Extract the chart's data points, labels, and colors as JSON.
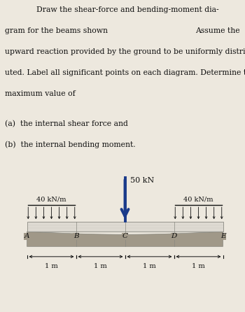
{
  "title_line1": "Draw the shear-force and bending-moment dia-",
  "title_line2_left": "gram for the beams shown",
  "title_line2_right": "Assume the",
  "title_line3": "upward reaction provided by the ground to be uniformly distrib-",
  "title_line4": "uted. Label all significant points on each diagram. Determine the",
  "title_line5": "maximum value of",
  "item_a": "(a)  the internal shear force and",
  "item_b": "(b)  the internal bending moment.",
  "load_label": "50 kN",
  "dist_load_left": "40 kN/m",
  "dist_load_right": "40 kN/m",
  "points": [
    "A",
    "B",
    "C",
    "D",
    "E"
  ],
  "spacings": [
    "1 m",
    "1 m",
    "1 m",
    "1 m"
  ],
  "bg_color": "#ede8de",
  "text_color": "#111111",
  "beam_face": "#dedad2",
  "beam_edge": "#888880",
  "ground_face": "#a09888",
  "arrow_color": "#1a3a8a",
  "fig_width": 3.5,
  "fig_height": 4.46,
  "dpi": 100
}
